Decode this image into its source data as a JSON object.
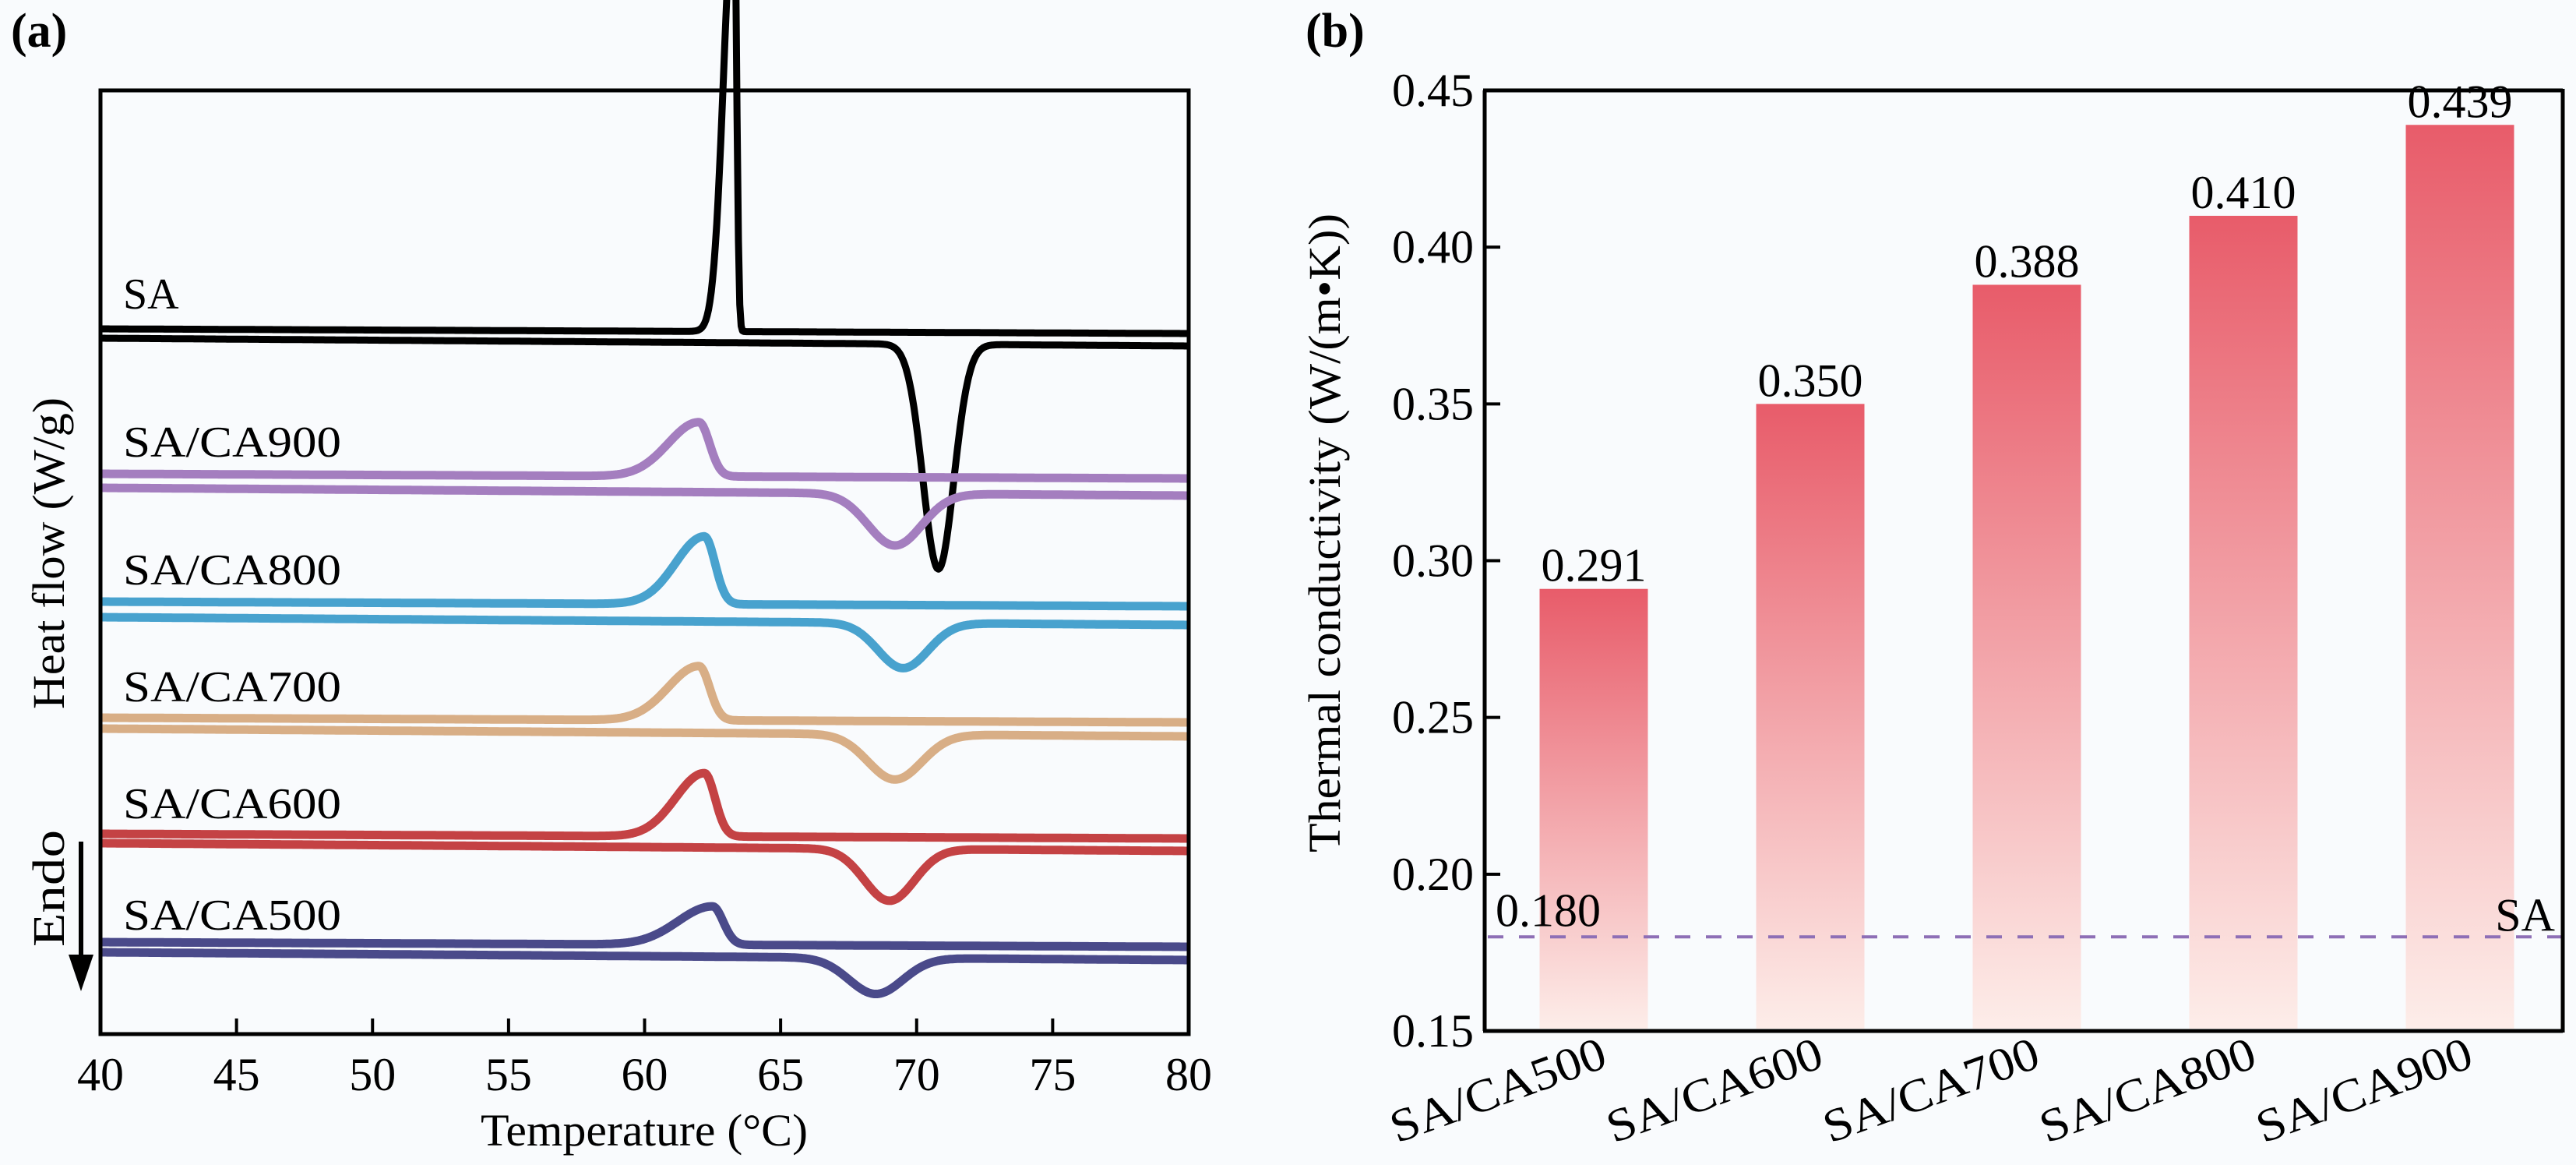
{
  "figure": {
    "panel_a_label": "(a)",
    "panel_b_label": "(b)"
  },
  "chart_data": [
    {
      "panel": "a",
      "type": "line",
      "title": "",
      "xlabel": "Temperature (°C)",
      "ylabel": "Heat flow (W/g)",
      "xlim": [
        40,
        80
      ],
      "xticks": [
        40,
        45,
        50,
        55,
        60,
        65,
        70,
        75,
        80
      ],
      "yticks_shown": false,
      "annotation": {
        "text": "Endo",
        "direction": "down"
      },
      "grid": false,
      "legend": "inline labels",
      "series": [
        {
          "name": "SA",
          "color": "#000000",
          "cooling": {
            "baseline_offset": 0.0,
            "peak_T": 63.3,
            "peak_height": 1.0,
            "peak_type": "exo-sharp"
          },
          "heating": {
            "baseline_offset": -0.04,
            "peak_T": 70.8,
            "peak_depth": 0.52
          }
        },
        {
          "name": "SA/CA900",
          "color": "#A47EBF",
          "cooling": {
            "baseline_offset": 0.0,
            "peak_T": 62.0,
            "peak_height": 0.24
          },
          "heating": {
            "baseline_offset": -0.06,
            "peak_T": 69.2,
            "peak_depth": 0.23
          }
        },
        {
          "name": "SA/CA800",
          "color": "#48A2CE",
          "cooling": {
            "baseline_offset": 0.0,
            "peak_T": 62.2,
            "peak_height": 0.3
          },
          "heating": {
            "baseline_offset": -0.06,
            "peak_T": 69.5,
            "peak_depth": 0.2
          }
        },
        {
          "name": "SA/CA700",
          "color": "#D8AE86",
          "cooling": {
            "baseline_offset": 0.0,
            "peak_T": 62.0,
            "peak_height": 0.24
          },
          "heating": {
            "baseline_offset": -0.04,
            "peak_T": 69.2,
            "peak_depth": 0.2
          }
        },
        {
          "name": "SA/CA600",
          "color": "#C44244",
          "cooling": {
            "baseline_offset": 0.0,
            "peak_T": 62.2,
            "peak_height": 0.28
          },
          "heating": {
            "baseline_offset": -0.03,
            "peak_T": 69.0,
            "peak_depth": 0.23
          }
        },
        {
          "name": "SA/CA500",
          "color": "#4A4A8A",
          "cooling": {
            "baseline_offset": 0.0,
            "peak_T": 62.5,
            "peak_height": 0.17
          },
          "heating": {
            "baseline_offset": -0.04,
            "peak_T": 68.5,
            "peak_depth": 0.16
          }
        }
      ]
    },
    {
      "panel": "b",
      "type": "bar",
      "title": "",
      "xlabel": "",
      "ylabel": "Thermal conductivity (W/(m•K))",
      "ylim": [
        0.15,
        0.45
      ],
      "yticks": [
        "0.15",
        "0.20",
        "0.25",
        "0.30",
        "0.35",
        "0.40",
        "0.45"
      ],
      "categories": [
        "SA/CA500",
        "SA/CA600",
        "SA/CA700",
        "SA/CA800",
        "SA/CA900"
      ],
      "values": [
        0.291,
        0.35,
        0.388,
        0.41,
        0.439
      ],
      "value_labels": [
        "0.291",
        "0.350",
        "0.388",
        "0.410",
        "0.439"
      ],
      "bar_color_top": "#E85C6A",
      "bar_color_bottom": "#FDEDE9",
      "reference_line": {
        "value": 0.18,
        "label_value": "0.180",
        "label": "SA",
        "color": "#8E6FB6",
        "style": "dashed"
      },
      "grid": false
    }
  ]
}
